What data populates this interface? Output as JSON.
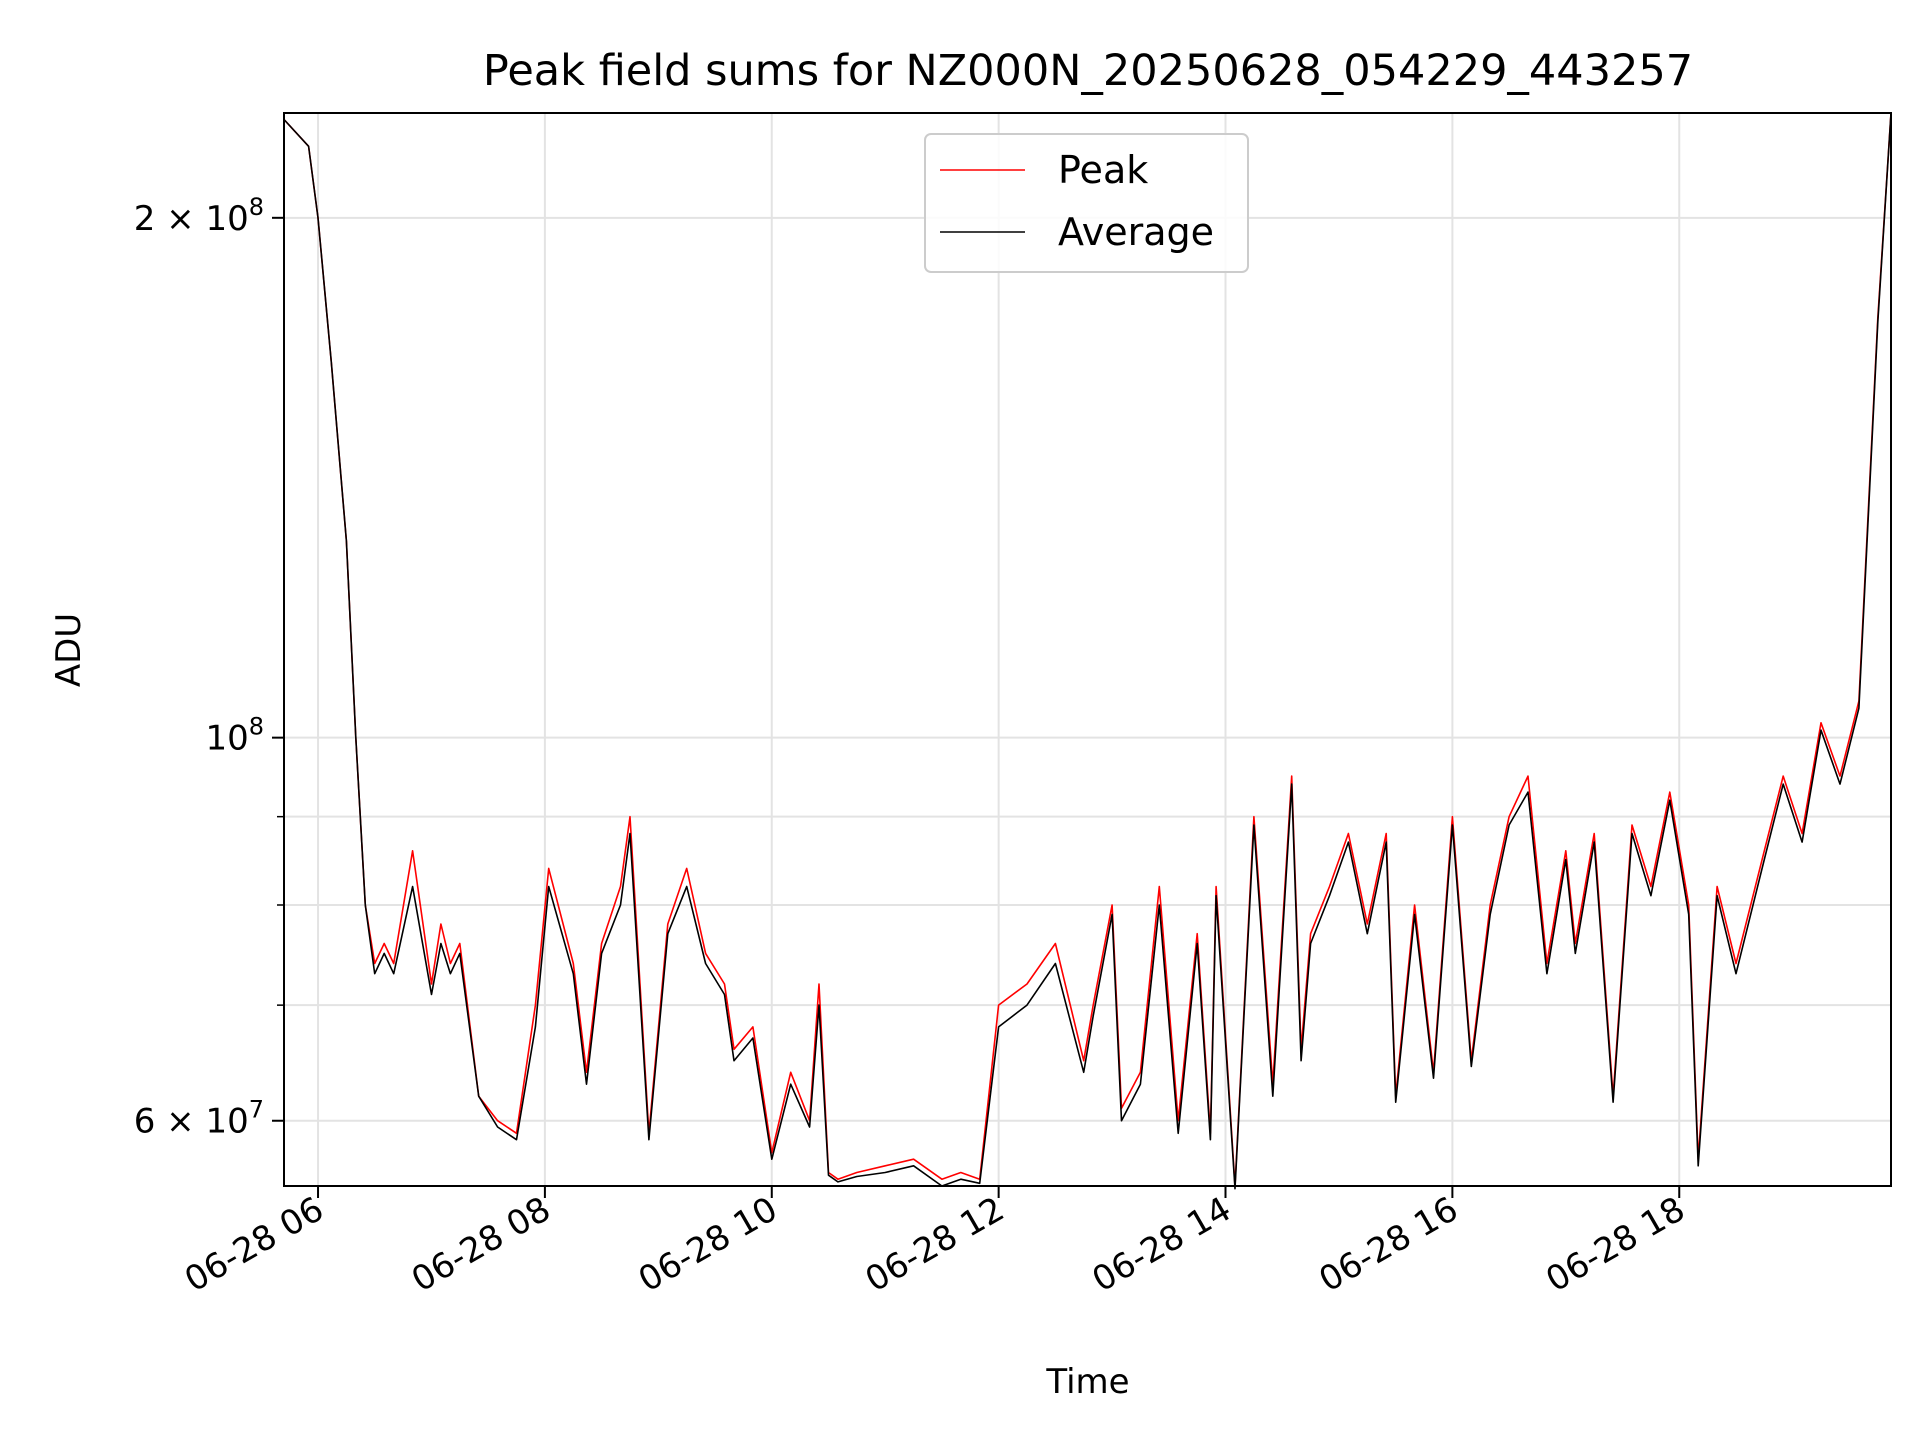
{
  "chart_data": {
    "type": "line",
    "title": "Peak field sums for NZ000N_20250628_054229_443257",
    "xlabel": "Time",
    "ylabel": "ADU",
    "yscale": "log",
    "xlim": [
      "2025-06-28 05:42",
      "2025-06-28 19:52"
    ],
    "ylim": [
      55000000,
      230000000
    ],
    "grid": true,
    "legend_position": "top-center",
    "x_ticks": [
      {
        "value": "2025-06-28 06:00",
        "label": "06-28 06"
      },
      {
        "value": "2025-06-28 08:00",
        "label": "06-28 08"
      },
      {
        "value": "2025-06-28 10:00",
        "label": "06-28 10"
      },
      {
        "value": "2025-06-28 12:00",
        "label": "06-28 12"
      },
      {
        "value": "2025-06-28 14:00",
        "label": "06-28 14"
      },
      {
        "value": "2025-06-28 16:00",
        "label": "06-28 16"
      },
      {
        "value": "2025-06-28 18:00",
        "label": "06-28 18"
      }
    ],
    "y_ticks": [
      {
        "value": 200000000,
        "label": "2 × 10",
        "exp": "8"
      },
      {
        "value": 100000000,
        "label": "10",
        "exp": "8"
      },
      {
        "value": 60000000,
        "label": "6 × 10",
        "exp": "7"
      }
    ],
    "y_minor_ticks": [
      70000000,
      80000000,
      90000000
    ],
    "x": [
      "2025-06-28 05:42",
      "2025-06-28 05:55",
      "2025-06-28 06:00",
      "2025-06-28 06:07",
      "2025-06-28 06:15",
      "2025-06-28 06:20",
      "2025-06-28 06:25",
      "2025-06-28 06:30",
      "2025-06-28 06:35",
      "2025-06-28 06:40",
      "2025-06-28 06:50",
      "2025-06-28 07:00",
      "2025-06-28 07:05",
      "2025-06-28 07:10",
      "2025-06-28 07:15",
      "2025-06-28 07:25",
      "2025-06-28 07:35",
      "2025-06-28 07:45",
      "2025-06-28 07:55",
      "2025-06-28 08:02",
      "2025-06-28 08:15",
      "2025-06-28 08:22",
      "2025-06-28 08:30",
      "2025-06-28 08:40",
      "2025-06-28 08:45",
      "2025-06-28 08:55",
      "2025-06-28 09:05",
      "2025-06-28 09:15",
      "2025-06-28 09:25",
      "2025-06-28 09:35",
      "2025-06-28 09:40",
      "2025-06-28 09:50",
      "2025-06-28 10:00",
      "2025-06-28 10:10",
      "2025-06-28 10:20",
      "2025-06-28 10:25",
      "2025-06-28 10:30",
      "2025-06-28 10:35",
      "2025-06-28 10:45",
      "2025-06-28 11:00",
      "2025-06-28 11:15",
      "2025-06-28 11:30",
      "2025-06-28 11:40",
      "2025-06-28 11:50",
      "2025-06-28 12:00",
      "2025-06-28 12:15",
      "2025-06-28 12:30",
      "2025-06-28 12:45",
      "2025-06-28 12:50",
      "2025-06-28 13:00",
      "2025-06-28 13:05",
      "2025-06-28 13:15",
      "2025-06-28 13:25",
      "2025-06-28 13:35",
      "2025-06-28 13:45",
      "2025-06-28 13:52",
      "2025-06-28 13:55",
      "2025-06-28 14:05",
      "2025-06-28 14:15",
      "2025-06-28 14:25",
      "2025-06-28 14:35",
      "2025-06-28 14:40",
      "2025-06-28 14:45",
      "2025-06-28 14:55",
      "2025-06-28 15:05",
      "2025-06-28 15:15",
      "2025-06-28 15:25",
      "2025-06-28 15:30",
      "2025-06-28 15:40",
      "2025-06-28 15:50",
      "2025-06-28 16:00",
      "2025-06-28 16:10",
      "2025-06-28 16:20",
      "2025-06-28 16:30",
      "2025-06-28 16:40",
      "2025-06-28 16:50",
      "2025-06-28 17:00",
      "2025-06-28 17:05",
      "2025-06-28 17:15",
      "2025-06-28 17:25",
      "2025-06-28 17:35",
      "2025-06-28 17:45",
      "2025-06-28 17:55",
      "2025-06-28 18:05",
      "2025-06-28 18:10",
      "2025-06-28 18:20",
      "2025-06-28 18:30",
      "2025-06-28 18:45",
      "2025-06-28 18:55",
      "2025-06-28 19:05",
      "2025-06-28 19:15",
      "2025-06-28 19:25",
      "2025-06-28 19:35",
      "2025-06-28 19:45",
      "2025-06-28 19:52"
    ],
    "series": [
      {
        "name": "Peak",
        "color": "#ff0000",
        "values": [
          228000000,
          220000000,
          200000000,
          165000000,
          130000000,
          100000000,
          80000000,
          74000000,
          76000000,
          74000000,
          86000000,
          72000000,
          78000000,
          74000000,
          76000000,
          62000000,
          60000000,
          59000000,
          70000000,
          84000000,
          74000000,
          64000000,
          76000000,
          82000000,
          90000000,
          59000000,
          78000000,
          84000000,
          75000000,
          72000000,
          66000000,
          68000000,
          57500000,
          64000000,
          60000000,
          72000000,
          56000000,
          55500000,
          56000000,
          56500000,
          57000000,
          55500000,
          56000000,
          55500000,
          70000000,
          72000000,
          76000000,
          65000000,
          70000000,
          80000000,
          61000000,
          64000000,
          82000000,
          60000000,
          77000000,
          59000000,
          82000000,
          55000000,
          90000000,
          63000000,
          95000000,
          66000000,
          77000000,
          82000000,
          88000000,
          78000000,
          88000000,
          62000000,
          80000000,
          64000000,
          90000000,
          65000000,
          80000000,
          90000000,
          95000000,
          74000000,
          86000000,
          76000000,
          88000000,
          62000000,
          89000000,
          82000000,
          93000000,
          80000000,
          57000000,
          82000000,
          74000000,
          86000000,
          95000000,
          88000000,
          102000000,
          95000000,
          105000000,
          175000000,
          230000000
        ]
      },
      {
        "name": "Average",
        "color": "#000000",
        "values": [
          228000000,
          220000000,
          200000000,
          165000000,
          130000000,
          100000000,
          80000000,
          73000000,
          75000000,
          73000000,
          82000000,
          71000000,
          76000000,
          73000000,
          75000000,
          62000000,
          59500000,
          58500000,
          68000000,
          82000000,
          73000000,
          63000000,
          75000000,
          80000000,
          88000000,
          58500000,
          77000000,
          82000000,
          74000000,
          71000000,
          65000000,
          67000000,
          57000000,
          63000000,
          59500000,
          70000000,
          55800000,
          55300000,
          55700000,
          56000000,
          56500000,
          55000000,
          55500000,
          55200000,
          68000000,
          70000000,
          74000000,
          64000000,
          69000000,
          79000000,
          60000000,
          63000000,
          80000000,
          59000000,
          76000000,
          58500000,
          81000000,
          54800000,
          89000000,
          62000000,
          94000000,
          65000000,
          76000000,
          81000000,
          87000000,
          77000000,
          87000000,
          61500000,
          79000000,
          63500000,
          89000000,
          64500000,
          79000000,
          89000000,
          93000000,
          73000000,
          85000000,
          75000000,
          87000000,
          61500000,
          88000000,
          81000000,
          92000000,
          79000000,
          56500000,
          81000000,
          73000000,
          85000000,
          94000000,
          87000000,
          101000000,
          94000000,
          104000000,
          174000000,
          230000000
        ]
      }
    ]
  }
}
